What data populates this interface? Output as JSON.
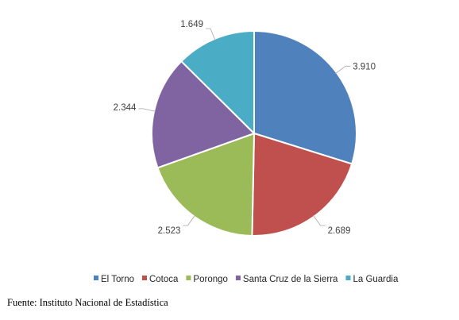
{
  "chart_data": {
    "type": "pie",
    "categories": [
      "El Torno",
      "Cotoca",
      "Porongo",
      "Santa Cruz de la Sierra",
      "La Guardia"
    ],
    "values": [
      3910,
      2689,
      2523,
      2344,
      1649
    ],
    "value_labels": [
      "3.910",
      "2.689",
      "2.523",
      "2.344",
      "1.649"
    ],
    "colors": [
      "#4f81bd",
      "#c0504d",
      "#9bbb59",
      "#8064a2",
      "#4bacc6"
    ],
    "legend_position": "bottom",
    "title": ""
  },
  "source": "Fuente: Instituto Nacional de Estadística"
}
